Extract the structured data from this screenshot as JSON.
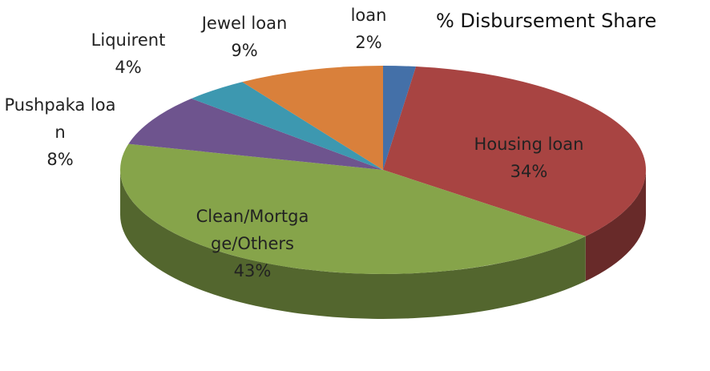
{
  "chart_data": {
    "type": "pie",
    "title": "% Disbursement Share",
    "categories": [
      "loan",
      "Housing loan",
      "Clean/Mortgage/Others",
      "Pushpaka loan",
      "Liquirent",
      "Jewel loan"
    ],
    "values": [
      2,
      34,
      43,
      8,
      4,
      9
    ],
    "value_labels": [
      "2%",
      "34%",
      "43%",
      "8%",
      "4%",
      "9%"
    ],
    "colors": [
      "#4470a8",
      "#a84442",
      "#86a44a",
      "#6e548e",
      "#3d98b0",
      "#d9803b"
    ],
    "start_angle": -90,
    "direction": "clockwise",
    "three_d": true
  }
}
